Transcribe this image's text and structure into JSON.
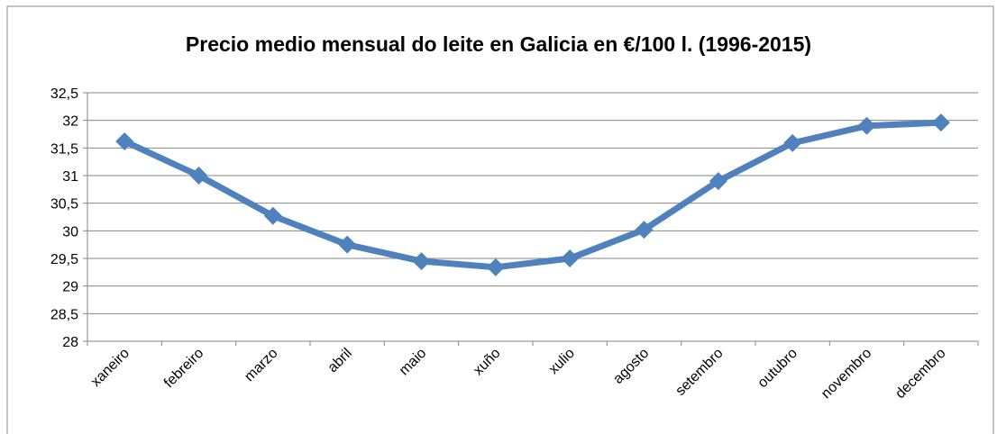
{
  "chart_data": {
    "type": "line",
    "title": "Precio medio mensual do leite en Galicia en €/100 l. (1996-2015)",
    "categories": [
      "xaneiro",
      "febreiro",
      "marzo",
      "abril",
      "maio",
      "xuño",
      "xulio",
      "agosto",
      "setembro",
      "outubro",
      "novembro",
      "decembro"
    ],
    "series": [
      {
        "name": "Precio",
        "color": "#4f81bd",
        "values": [
          31.62,
          31.0,
          30.27,
          29.75,
          29.45,
          29.34,
          29.5,
          30.02,
          30.9,
          31.59,
          31.9,
          31.96
        ]
      }
    ],
    "ylim": [
      28,
      32.5
    ],
    "yticks": [
      {
        "value": 28,
        "label": "28"
      },
      {
        "value": 28.5,
        "label": "28,5"
      },
      {
        "value": 29,
        "label": "29"
      },
      {
        "value": 29.5,
        "label": "29,5"
      },
      {
        "value": 30,
        "label": "30"
      },
      {
        "value": 30.5,
        "label": "30,5"
      },
      {
        "value": 31,
        "label": "31"
      },
      {
        "value": 31.5,
        "label": "31,5"
      },
      {
        "value": 32,
        "label": "32"
      },
      {
        "value": 32.5,
        "label": "32,5"
      }
    ],
    "grid": true,
    "legend": false
  }
}
